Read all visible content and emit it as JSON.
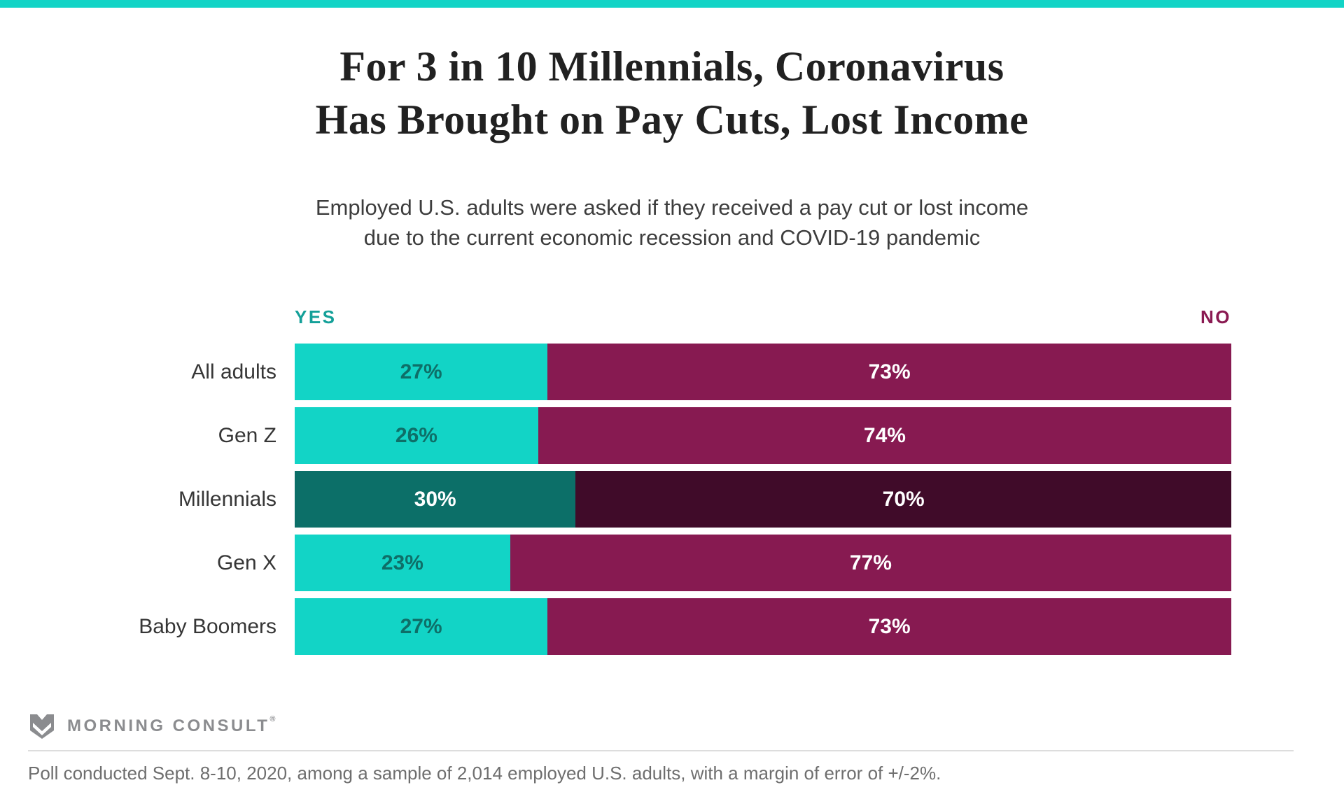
{
  "header": {
    "title_line1": "For 3 in 10 Millennials, Coronavirus",
    "title_line2": "Has Brought on Pay Cuts, Lost Income",
    "subtitle_line1": "Employed U.S. adults were asked if they received a pay cut or lost income",
    "subtitle_line2": "due to the current economic recession and COVID-19 pandemic"
  },
  "chart_data": {
    "type": "bar",
    "orientation": "horizontal",
    "stacked": true,
    "xlim": [
      0,
      100
    ],
    "value_suffix": "%",
    "grid": false,
    "legend_position": "above-bars",
    "axis_label_yes": "YES",
    "axis_label_no": "NO",
    "categories": [
      "All adults",
      "Gen Z",
      "Millennials",
      "Gen X",
      "Baby Boomers"
    ],
    "series": [
      {
        "name": "Yes",
        "values": [
          27,
          26,
          30,
          23,
          27
        ]
      },
      {
        "name": "No",
        "values": [
          73,
          74,
          70,
          77,
          73
        ]
      }
    ],
    "highlighted_category": "Millennials",
    "title": "For 3 in 10 Millennials, Coronavirus Has Brought on Pay Cuts, Lost Income"
  },
  "colors": {
    "accent_bar": "#12d4c6",
    "yes_segment": "#12d4c6",
    "no_segment": "#871a51",
    "yes_segment_highlight": "#0c6f68",
    "no_segment_highlight": "#400b29",
    "yes_value_text": "#0e6f68",
    "yes_value_text_highlight": "#ffffff",
    "no_value_text": "#ffffff",
    "yes_axis_label": "#14a099",
    "no_axis_label": "#8a1a52"
  },
  "footer": {
    "logo_text": "MORNING CONSULT",
    "registered_mark": "®",
    "source": "Poll conducted Sept. 8-10, 2020, among a sample of 2,014 employed U.S. adults, with a margin of error of +/-2%."
  }
}
